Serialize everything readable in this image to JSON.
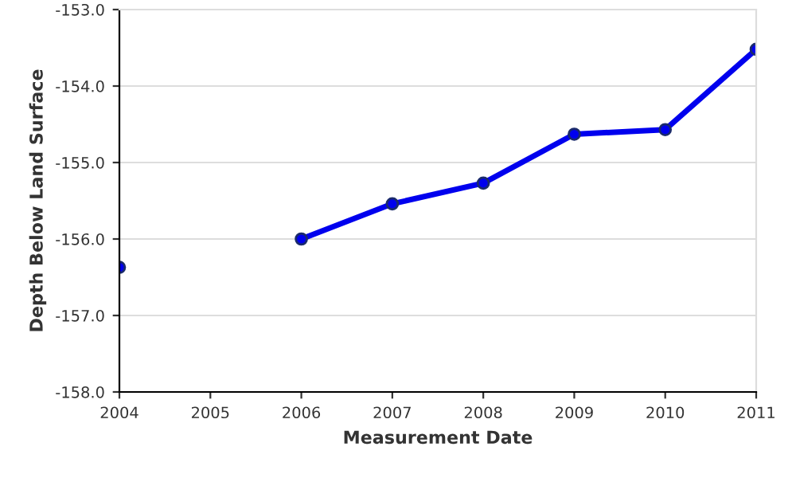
{
  "chart_data": {
    "type": "line",
    "xlabel": "Measurement Date",
    "ylabel": "Depth Below Land Surface",
    "x": [
      2004,
      2005,
      2006,
      2007,
      2008,
      2009,
      2010,
      2011
    ],
    "series": [
      {
        "color": "#0000ee",
        "values": [
          -156.37,
          null,
          -156.0,
          -155.54,
          -155.27,
          -154.63,
          -154.57,
          -153.52
        ]
      }
    ],
    "xlim": [
      2004,
      2011
    ],
    "xticks": [
      2004,
      2005,
      2006,
      2007,
      2008,
      2009,
      2010,
      2011
    ],
    "ylim": [
      -158.0,
      -153.0
    ],
    "yticks": [
      {
        "value": -158,
        "label": "-158.0"
      },
      {
        "value": -157,
        "label": "-157.0"
      },
      {
        "value": -156,
        "label": "-156.0"
      },
      {
        "value": -155,
        "label": "-155.0"
      },
      {
        "value": -154,
        "label": "-154.0"
      },
      {
        "value": -153,
        "label": "-153.0"
      }
    ],
    "grid": "y",
    "marker": "circle",
    "line_style": "solid"
  }
}
